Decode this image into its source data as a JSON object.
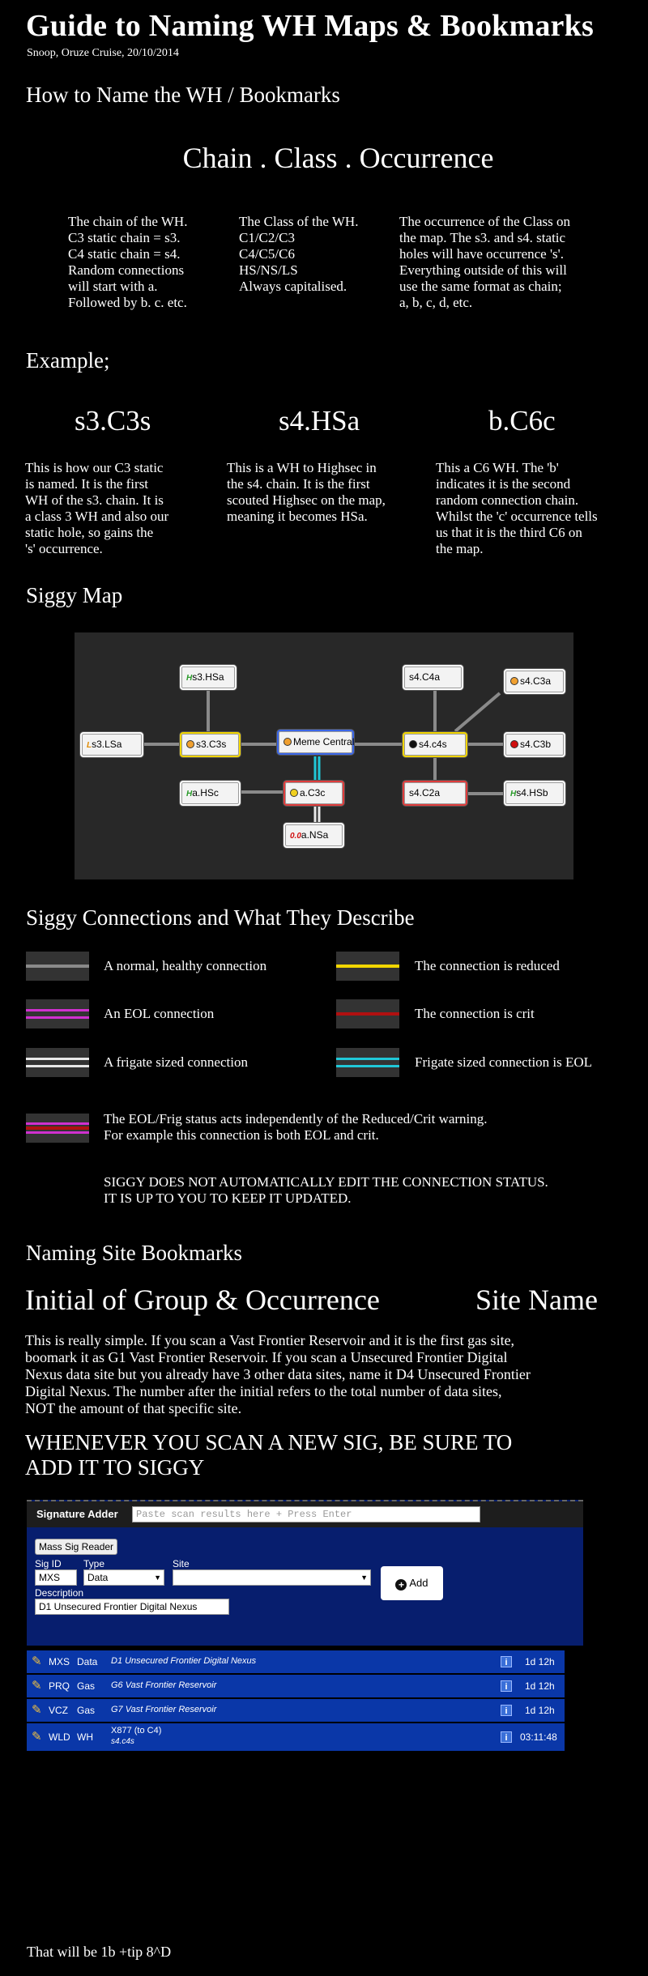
{
  "header": {
    "title": "Guide to Naming WH Maps & Bookmarks",
    "byline": "Snoop, Oruze Cruise, 20/10/2014"
  },
  "how_to_name": {
    "heading": "How to Name the WH / Bookmarks",
    "formula": "Chain . Class . Occurrence",
    "columns": [
      {
        "lines": [
          "The chain of the WH.",
          "C3 static chain = s3.",
          "C4 static chain = s4.",
          "Random connections",
          "will start with a.",
          "Followed by b. c. etc."
        ]
      },
      {
        "lines": [
          "The Class of the WH.",
          "C1/C2/C3",
          "C4/C5/C6",
          "HS/NS/LS",
          "Always capitalised."
        ]
      },
      {
        "lines": [
          "The occurrence of the Class on",
          "the map. The s3. and s4. static",
          "holes will have occurrence 's'.",
          "Everything outside of this will",
          "use the same format as chain;",
          "a, b, c, d, etc."
        ]
      }
    ]
  },
  "examples": {
    "heading": "Example;",
    "items": [
      {
        "code": "s3.C3s",
        "lines": [
          "This is how our C3 static",
          "is named. It is the first",
          "WH of the s3. chain. It is",
          "a class 3 WH and also our",
          "static hole, so gains the",
          "'s' occurrence."
        ]
      },
      {
        "code": "s4.HSa",
        "lines": [
          "This is a WH to Highsec in",
          "the s4. chain. It is the first",
          "scouted Highsec on the map,",
          "meaning it becomes HSa."
        ]
      },
      {
        "code": "b.C6c",
        "lines": [
          "This a C6 WH. The 'b'",
          "indicates it is the second",
          "random connection chain.",
          "Whilst the 'c' occurrence tells",
          "us that it is the third C6 on",
          "the map."
        ]
      }
    ]
  },
  "siggy_map": {
    "heading": "Siggy Map",
    "nodes": [
      {
        "label": "s3.HSa",
        "prefix": "H",
        "prefix_color": "#2a9a2a"
      },
      {
        "label": "s3.LSa",
        "prefix": "L",
        "prefix_color": "#e08a00"
      },
      {
        "label": "s3.C3s",
        "prefix": "dot",
        "prefix_color": "#f0a030"
      },
      {
        "label": "Meme Central",
        "prefix": "dot",
        "prefix_color": "#f0a030"
      },
      {
        "label": "a.HSc",
        "prefix": "H",
        "prefix_color": "#2a9a2a"
      },
      {
        "label": "a.C3c",
        "prefix": "dot",
        "prefix_color": "#f0d020"
      },
      {
        "label": "a.NSa",
        "prefix": "0.0",
        "prefix_color": "#d01010"
      },
      {
        "label": "s4.C4a",
        "prefix": "",
        "prefix_color": ""
      },
      {
        "label": "s4.c4s",
        "prefix": "dot",
        "prefix_color": "#111111"
      },
      {
        "label": "s4.C2a",
        "prefix": "",
        "prefix_color": ""
      },
      {
        "label": "s4.C3a",
        "prefix": "dot",
        "prefix_color": "#f0a030"
      },
      {
        "label": "s4.C3b",
        "prefix": "dot",
        "prefix_color": "#d01010"
      },
      {
        "label": "s4.HSb",
        "prefix": "H",
        "prefix_color": "#2a9a2a"
      }
    ]
  },
  "connections": {
    "heading": "Siggy Connections and What They Describe",
    "items": [
      {
        "label": "A normal, healthy connection"
      },
      {
        "label": "The connection is reduced"
      },
      {
        "label": "An EOL connection"
      },
      {
        "label": "The connection is crit"
      },
      {
        "label": "A frigate sized connection"
      },
      {
        "label": "Frigate sized connection is EOL"
      }
    ],
    "combo_lines": [
      "The EOL/Frig status acts independently of the Reduced/Crit warning.",
      "For example this connection is both EOL and crit."
    ],
    "warning_lines": [
      "SIGGY DOES NOT AUTOMATICALLY EDIT THE CONNECTION STATUS.",
      "IT IS UP TO YOU TO KEEP IT UPDATED."
    ]
  },
  "bookmarks": {
    "heading": "Naming Site Bookmarks",
    "left_title": "Initial of Group & Occurrence",
    "right_title": "Site Name",
    "lines": [
      "This is really simple. If you scan a Vast Frontier Reservoir and it is the first gas site,",
      "boomark it as G1 Vast Frontier Reservoir. If you scan a Unsecured Frontier Digital",
      "Nexus data site but you already have 3 other data sites, name it D4 Unsecured Frontier",
      "Digital Nexus. The number after the initial refers to the total number of data sites,",
      "NOT the amount of that specific site."
    ],
    "callout_lines": [
      "WHENEVER YOU SCAN A NEW SIG, BE SURE TO",
      "ADD IT TO SIGGY"
    ]
  },
  "sig_adder": {
    "title": "Signature Adder",
    "paste_placeholder": "Paste scan results here + Press Enter",
    "mass_button": "Mass Sig Reader",
    "sig_id_label": "Sig ID",
    "sig_id_value": "MXS",
    "type_label": "Type",
    "type_value": "Data",
    "site_label": "Site",
    "site_value": "",
    "desc_label": "Description",
    "desc_value": "D1 Unsecured Frontier Digital Nexus",
    "add_button": "Add"
  },
  "sig_list": [
    {
      "id": "MXS",
      "type": "Data",
      "desc": "D1 Unsecured Frontier Digital Nexus",
      "sub": "",
      "age": "1d 12h"
    },
    {
      "id": "PRQ",
      "type": "Gas",
      "desc": "G6 Vast Frontier Reservoir",
      "sub": "",
      "age": "1d 12h"
    },
    {
      "id": "VCZ",
      "type": "Gas",
      "desc": "G7 Vast Frontier Reservoir",
      "sub": "",
      "age": "1d 12h"
    },
    {
      "id": "WLD",
      "type": "WH",
      "desc": "X877 (to C4)",
      "sub": "s4.c4s",
      "age": "03:11:48"
    }
  ],
  "footer": {
    "text": "That will be 1b +tip 8^D"
  }
}
